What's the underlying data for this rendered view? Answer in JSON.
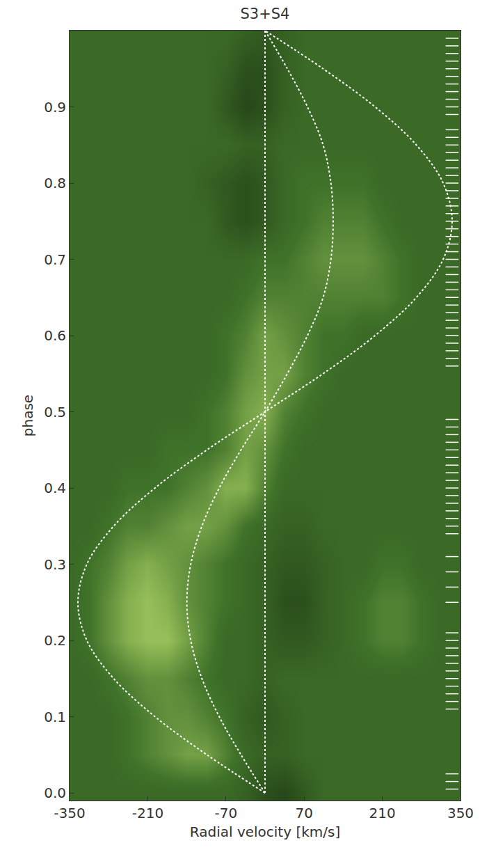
{
  "chart_data": {
    "type": "heatmap",
    "title": "S3+S4",
    "x_label": "Radial velocity [km/s]",
    "y_label": "phase",
    "xlim": [
      -350,
      350
    ],
    "xticks": [
      -350,
      -210,
      -70,
      70,
      210,
      350
    ],
    "ylim": [
      -0.01,
      1.0
    ],
    "yticks": [
      {
        "value": 0,
        "label": "0.0"
      },
      0.1,
      0.2,
      0.3,
      0.4,
      0.5,
      0.6,
      0.7,
      0.8,
      0.9
    ],
    "grid": false,
    "tick_labels": true,
    "heatmap": {
      "x": [
        -350,
        -315,
        -280,
        -245,
        -210,
        -175,
        -140,
        -105,
        -70,
        -35,
        0,
        35,
        70,
        105,
        140,
        175,
        210,
        245,
        280,
        315,
        350
      ],
      "y": [
        0,
        0.05,
        0.1,
        0.15,
        0.2,
        0.25,
        0.3,
        0.35,
        0.4,
        0.45,
        0.5,
        0.55,
        0.6,
        0.65,
        0.7,
        0.75,
        0.8,
        0.85,
        0.9,
        0.95,
        1.0
      ],
      "z": [
        [
          0.4,
          0.4,
          0.4,
          0.4,
          0.4,
          0.4,
          0.4,
          0.4,
          0.4,
          0.35,
          0.25,
          0.2,
          0.3,
          0.4,
          0.4,
          0.4,
          0.4,
          0.4,
          0.4,
          0.4,
          0.4
        ],
        [
          0.4,
          0.4,
          0.4,
          0.45,
          0.5,
          0.55,
          0.6,
          0.6,
          0.5,
          0.4,
          0.35,
          0.35,
          0.4,
          0.4,
          0.4,
          0.4,
          0.4,
          0.4,
          0.4,
          0.4,
          0.4
        ],
        [
          0.4,
          0.4,
          0.4,
          0.45,
          0.5,
          0.55,
          0.55,
          0.5,
          0.45,
          0.35,
          0.3,
          0.35,
          0.4,
          0.4,
          0.4,
          0.4,
          0.4,
          0.4,
          0.4,
          0.4,
          0.4
        ],
        [
          0.4,
          0.4,
          0.45,
          0.5,
          0.55,
          0.55,
          0.5,
          0.45,
          0.4,
          0.4,
          0.35,
          0.4,
          0.4,
          0.4,
          0.4,
          0.4,
          0.4,
          0.4,
          0.4,
          0.4,
          0.4
        ],
        [
          0.4,
          0.45,
          0.55,
          0.65,
          0.7,
          0.7,
          0.6,
          0.5,
          0.4,
          0.4,
          0.35,
          0.3,
          0.3,
          0.35,
          0.4,
          0.45,
          0.5,
          0.5,
          0.45,
          0.4,
          0.4
        ],
        [
          0.4,
          0.45,
          0.55,
          0.65,
          0.7,
          0.65,
          0.55,
          0.5,
          0.45,
          0.4,
          0.35,
          0.25,
          0.25,
          0.35,
          0.4,
          0.45,
          0.5,
          0.5,
          0.45,
          0.4,
          0.4
        ],
        [
          0.4,
          0.45,
          0.5,
          0.6,
          0.65,
          0.6,
          0.55,
          0.5,
          0.45,
          0.4,
          0.35,
          0.3,
          0.3,
          0.35,
          0.4,
          0.4,
          0.45,
          0.45,
          0.4,
          0.4,
          0.4
        ],
        [
          0.4,
          0.4,
          0.45,
          0.5,
          0.5,
          0.55,
          0.6,
          0.6,
          0.55,
          0.45,
          0.4,
          0.35,
          0.35,
          0.4,
          0.4,
          0.4,
          0.4,
          0.4,
          0.4,
          0.4,
          0.4
        ],
        [
          0.4,
          0.4,
          0.4,
          0.45,
          0.45,
          0.45,
          0.5,
          0.55,
          0.65,
          0.65,
          0.5,
          0.4,
          0.4,
          0.4,
          0.4,
          0.4,
          0.4,
          0.4,
          0.4,
          0.4,
          0.4
        ],
        [
          0.4,
          0.4,
          0.4,
          0.4,
          0.4,
          0.45,
          0.45,
          0.45,
          0.5,
          0.6,
          0.55,
          0.45,
          0.4,
          0.4,
          0.4,
          0.4,
          0.4,
          0.4,
          0.4,
          0.4,
          0.4
        ],
        [
          0.4,
          0.4,
          0.4,
          0.4,
          0.4,
          0.4,
          0.4,
          0.45,
          0.5,
          0.6,
          0.65,
          0.5,
          0.45,
          0.4,
          0.4,
          0.4,
          0.4,
          0.4,
          0.4,
          0.4,
          0.4
        ],
        [
          0.4,
          0.4,
          0.4,
          0.4,
          0.4,
          0.4,
          0.4,
          0.4,
          0.45,
          0.55,
          0.6,
          0.6,
          0.5,
          0.45,
          0.4,
          0.4,
          0.4,
          0.4,
          0.4,
          0.4,
          0.4
        ],
        [
          0.4,
          0.4,
          0.4,
          0.4,
          0.4,
          0.4,
          0.4,
          0.4,
          0.45,
          0.5,
          0.6,
          0.55,
          0.5,
          0.45,
          0.45,
          0.4,
          0.4,
          0.4,
          0.4,
          0.4,
          0.4
        ],
        [
          0.4,
          0.4,
          0.4,
          0.4,
          0.4,
          0.4,
          0.4,
          0.4,
          0.4,
          0.45,
          0.5,
          0.5,
          0.5,
          0.5,
          0.5,
          0.5,
          0.5,
          0.45,
          0.4,
          0.4,
          0.4
        ],
        [
          0.4,
          0.4,
          0.4,
          0.4,
          0.4,
          0.4,
          0.4,
          0.4,
          0.4,
          0.4,
          0.45,
          0.45,
          0.5,
          0.55,
          0.55,
          0.55,
          0.5,
          0.45,
          0.4,
          0.4,
          0.4
        ],
        [
          0.4,
          0.4,
          0.4,
          0.4,
          0.4,
          0.4,
          0.4,
          0.4,
          0.3,
          0.25,
          0.3,
          0.4,
          0.45,
          0.5,
          0.5,
          0.5,
          0.45,
          0.4,
          0.4,
          0.4,
          0.4
        ],
        [
          0.4,
          0.4,
          0.4,
          0.4,
          0.4,
          0.4,
          0.4,
          0.35,
          0.3,
          0.25,
          0.3,
          0.4,
          0.45,
          0.45,
          0.45,
          0.45,
          0.4,
          0.4,
          0.4,
          0.4,
          0.4
        ],
        [
          0.4,
          0.4,
          0.4,
          0.4,
          0.4,
          0.4,
          0.4,
          0.4,
          0.4,
          0.35,
          0.35,
          0.4,
          0.4,
          0.4,
          0.4,
          0.4,
          0.4,
          0.4,
          0.4,
          0.4,
          0.4
        ],
        [
          0.4,
          0.4,
          0.4,
          0.4,
          0.4,
          0.4,
          0.4,
          0.4,
          0.3,
          0.2,
          0.25,
          0.35,
          0.4,
          0.4,
          0.4,
          0.4,
          0.4,
          0.4,
          0.4,
          0.4,
          0.4
        ],
        [
          0.4,
          0.4,
          0.4,
          0.4,
          0.4,
          0.4,
          0.4,
          0.4,
          0.35,
          0.25,
          0.25,
          0.35,
          0.4,
          0.4,
          0.4,
          0.4,
          0.4,
          0.4,
          0.4,
          0.4,
          0.4
        ],
        [
          0.4,
          0.4,
          0.4,
          0.4,
          0.4,
          0.4,
          0.4,
          0.4,
          0.4,
          0.35,
          0.3,
          0.35,
          0.4,
          0.4,
          0.4,
          0.4,
          0.4,
          0.4,
          0.4,
          0.4,
          0.4
        ]
      ],
      "zlim": [
        0.15,
        0.75
      ],
      "colors": [
        "#223f16",
        "#3f7229",
        "#a9cf63"
      ]
    },
    "series": [
      {
        "color": "#ffffff",
        "line_style": "dot",
        "x": [
          0,
          -104,
          -197,
          -271,
          -319,
          -335,
          -319,
          -271,
          -197,
          -104,
          0,
          104,
          197,
          271,
          319,
          335,
          319,
          271,
          197,
          104,
          0
        ],
        "y": [
          0,
          0.05,
          0.1,
          0.15,
          0.2,
          0.25,
          0.3,
          0.35,
          0.4,
          0.45,
          0.5,
          0.55,
          0.6,
          0.65,
          0.7,
          0.75,
          0.8,
          0.85,
          0.9,
          0.95,
          1.0
        ]
      },
      {
        "color": "#ffffff",
        "line_style": "dot",
        "x": [
          0,
          -43,
          -82,
          -113,
          -133,
          -140,
          -133,
          -113,
          -82,
          -43,
          0,
          40,
          76,
          104,
          118,
          122,
          118,
          104,
          76,
          40,
          0
        ],
        "y": [
          0,
          0.05,
          0.1,
          0.15,
          0.2,
          0.25,
          0.3,
          0.35,
          0.4,
          0.45,
          0.5,
          0.55,
          0.6,
          0.65,
          0.7,
          0.75,
          0.8,
          0.85,
          0.9,
          0.95,
          1.0
        ]
      },
      {
        "color": "#ffffff",
        "line_style": "dot",
        "x": [
          0,
          0
        ],
        "y": [
          0,
          1.0
        ]
      }
    ],
    "observed_phases": {
      "color": "#ffffff",
      "marker": "line-ew",
      "values": [
        0.005,
        0.015,
        0.025,
        0.11,
        0.12,
        0.13,
        0.14,
        0.15,
        0.16,
        0.17,
        0.18,
        0.19,
        0.2,
        0.21,
        0.25,
        0.27,
        0.29,
        0.31,
        0.34,
        0.35,
        0.36,
        0.37,
        0.38,
        0.39,
        0.4,
        0.41,
        0.42,
        0.43,
        0.44,
        0.45,
        0.46,
        0.47,
        0.48,
        0.49,
        0.56,
        0.57,
        0.58,
        0.59,
        0.6,
        0.61,
        0.62,
        0.63,
        0.64,
        0.65,
        0.66,
        0.67,
        0.68,
        0.69,
        0.7,
        0.71,
        0.72,
        0.73,
        0.74,
        0.75,
        0.76,
        0.77,
        0.78,
        0.79,
        0.8,
        0.81,
        0.82,
        0.83,
        0.84,
        0.85,
        0.86,
        0.87,
        0.89,
        0.9,
        0.91,
        0.92,
        0.93,
        0.94,
        0.95,
        0.96,
        0.97,
        0.98,
        0.99
      ]
    }
  }
}
